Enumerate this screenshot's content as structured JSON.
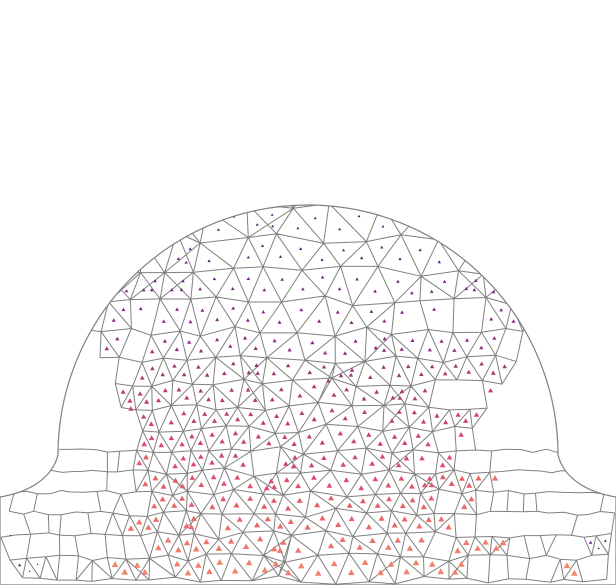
{
  "figure": {
    "description_kind": "triangulated mesh with per-element colored markers",
    "colormap_colors": [
      "#000004",
      "#3b0f70",
      "#8c2981",
      "#de4968",
      "#fe9f6d",
      "#fcfdbf"
    ],
    "mesh_edge_color": "#808080",
    "background_color": "#ffffff",
    "marker_shape": "triangle"
  }
}
